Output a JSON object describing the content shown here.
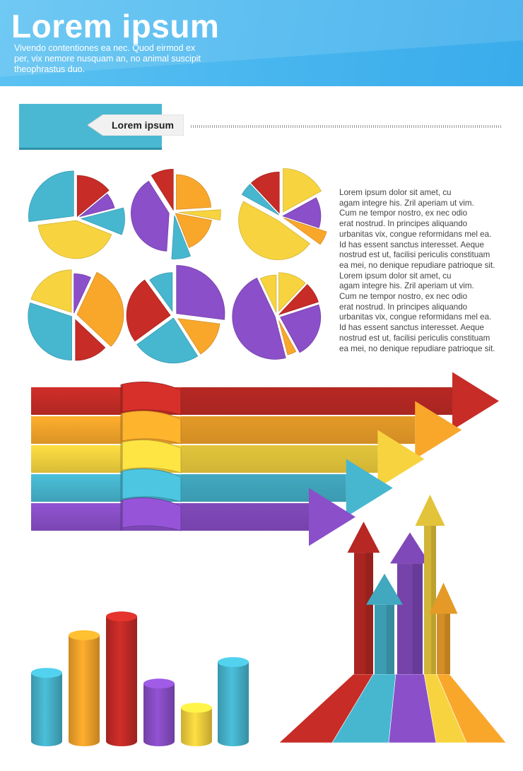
{
  "header": {
    "title": "Lorem ipsum",
    "subtitle": "Vivendo contentiones ea nec. Quod eirmod ex per, vix nemore nusquam an, no animal suscipit theophrastus duo."
  },
  "banner": {
    "label": "Lorem ipsum"
  },
  "body_text": "Lorem ipsum dolor sit amet, cu\nagam integre his. Zril aperiam ut vim.\nCum ne tempor nostro, ex nec odio\nerat nostrud. In principes aliquando\nurbanitas vix, congue reformidans mel ea.\nId has essent sanctus interesset. Aeque\nnostrud est ut, facilisi periculis constituam\nea mei, no denique repudiare patrioque sit.\nLorem ipsum dolor sit amet, cu\nagam integre his. Zril aperiam ut vim.\nCum ne tempor nostro, ex nec odio\nerat nostrud. In principes aliquando\nurbanitas vix, congue reformidans mel ea.\nId has essent sanctus interesset. Aeque\nnostrud est ut, facilisi periculis constituam\nea mei, no denique repudiare patrioque sit.",
  "colors": {
    "red": "#c72c27",
    "orange": "#f9a72b",
    "yellow": "#f7d43f",
    "teal": "#47b7d0",
    "purple": "#8b4fc9",
    "header": "#4fbaf0"
  },
  "pies": [
    {
      "slices": [
        {
          "color": "red",
          "frac": 0.14
        },
        {
          "color": "purple",
          "frac": 0.07
        },
        {
          "color": "teal",
          "frac": 0.1
        },
        {
          "color": "yellow",
          "frac": 0.42
        },
        {
          "color": "teal",
          "frac": 0.27
        }
      ]
    },
    {
      "slices": [
        {
          "color": "orange",
          "frac": 0.24
        },
        {
          "color": "yellow",
          "frac": 0.04
        },
        {
          "color": "orange",
          "frac": 0.16
        },
        {
          "color": "teal",
          "frac": 0.07
        },
        {
          "color": "purple",
          "frac": 0.4
        },
        {
          "color": "red",
          "frac": 0.09
        }
      ]
    },
    {
      "slices": [
        {
          "color": "yellow",
          "frac": 0.17
        },
        {
          "color": "purple",
          "frac": 0.13
        },
        {
          "color": "orange",
          "frac": 0.05
        },
        {
          "color": "yellow",
          "frac": 0.48
        },
        {
          "color": "teal",
          "frac": 0.05
        },
        {
          "color": "red",
          "frac": 0.12
        }
      ]
    },
    {
      "slices": [
        {
          "color": "purple",
          "frac": 0.07
        },
        {
          "color": "orange",
          "frac": 0.3
        },
        {
          "color": "red",
          "frac": 0.13
        },
        {
          "color": "teal",
          "frac": 0.3
        },
        {
          "color": "yellow",
          "frac": 0.2
        }
      ]
    },
    {
      "slices": [
        {
          "color": "purple",
          "frac": 0.27
        },
        {
          "color": "orange",
          "frac": 0.14
        },
        {
          "color": "teal",
          "frac": 0.24
        },
        {
          "color": "red",
          "frac": 0.25
        },
        {
          "color": "teal",
          "frac": 0.1
        }
      ]
    },
    {
      "slices": [
        {
          "color": "yellow",
          "frac": 0.12
        },
        {
          "color": "red",
          "frac": 0.08
        },
        {
          "color": "purple",
          "frac": 0.22
        },
        {
          "color": "orange",
          "frac": 0.04
        },
        {
          "color": "purple",
          "frac": 0.47
        },
        {
          "color": "yellow",
          "frac": 0.07
        }
      ]
    }
  ],
  "ribbon_arrows": [
    {
      "color": "red",
      "level": 1.0
    },
    {
      "color": "orange",
      "level": 0.87
    },
    {
      "color": "yellow",
      "level": 0.74
    },
    {
      "color": "teal",
      "level": 0.63
    },
    {
      "color": "purple",
      "level": 0.5
    }
  ],
  "cylinders": [
    {
      "color": "teal",
      "value": 0.51
    },
    {
      "color": "orange",
      "value": 0.79
    },
    {
      "color": "red",
      "value": 0.93
    },
    {
      "color": "purple",
      "value": 0.43
    },
    {
      "color": "yellow",
      "value": 0.25
    },
    {
      "color": "teal",
      "value": 0.59
    }
  ],
  "up_arrows": [
    {
      "color": "red",
      "level": 0.85
    },
    {
      "color": "teal",
      "level": 0.56
    },
    {
      "color": "purple",
      "level": 0.79
    },
    {
      "color": "yellow",
      "level": 1.0
    },
    {
      "color": "orange",
      "level": 0.51
    }
  ]
}
